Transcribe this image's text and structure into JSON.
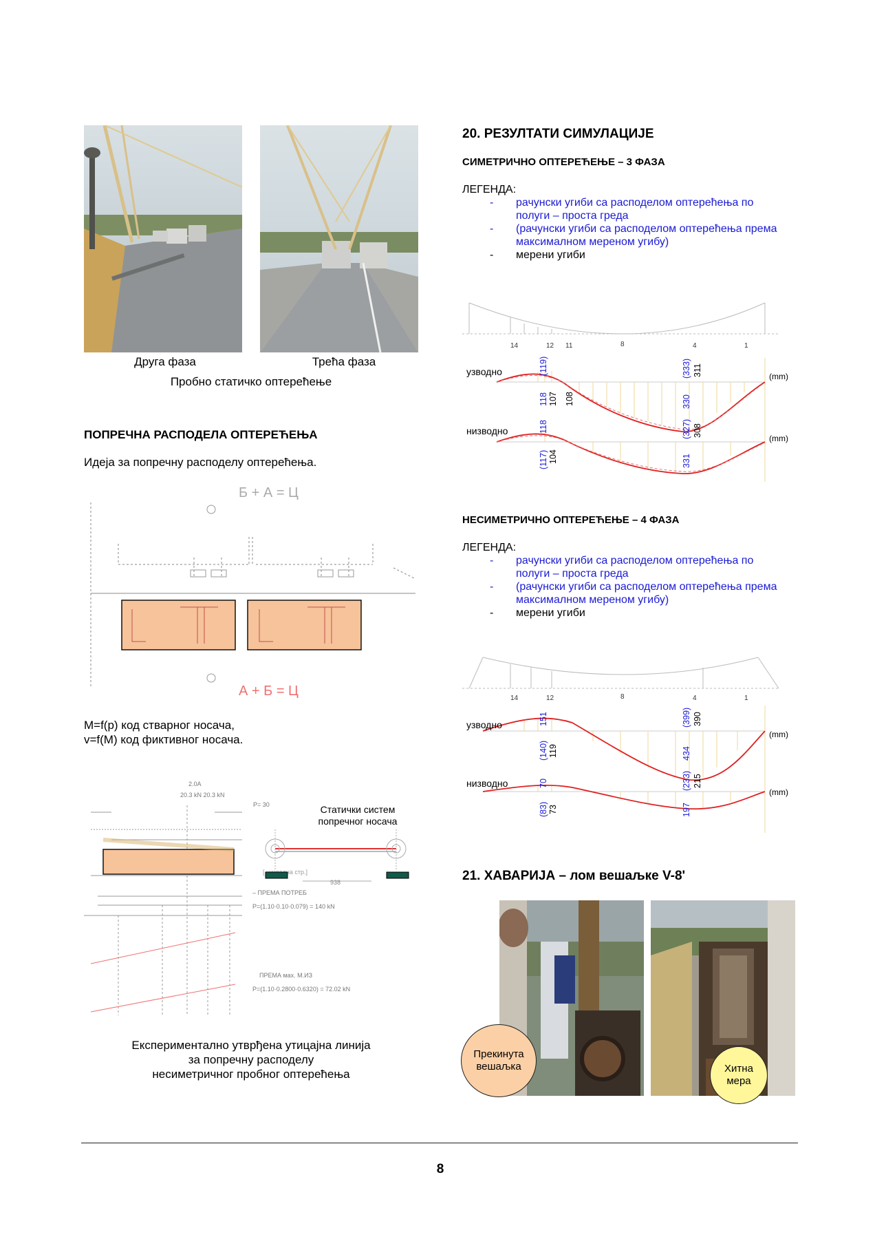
{
  "left": {
    "photo_captions": [
      "Друга фаза",
      "Трећа фаза"
    ],
    "photo_subtitle": "Пробно статичко оптерећење",
    "section_title": "ПОПРЕЧНА РАСПОДЕЛА ОПТЕРЕЋЕЊА",
    "section_intro": "Идеја за попречну расподелу оптерећења.",
    "diagram_top_eq": "Б + А = Ц",
    "diagram_bottom_eq": "А + Б = Ц",
    "mf_line1": "M=f(p) код стварног носача,",
    "mf_line2": "v=f(M) код фиктивног носача.",
    "static_label_1": "Статички систем",
    "static_label_2": "попречног носача",
    "bottom_caption": [
      "Експериментално утврђена утицајна линија",
      "за попречну расподелу",
      "несиметричног пробног оптерећења"
    ]
  },
  "right": {
    "s20_title": "20.  РЕЗУЛТАТИ СИМУЛАЦИЈЕ",
    "sym_title": "СИМЕТРИЧНО ОПТЕРЕЋЕЊЕ – 3 ФАЗА",
    "asym_title": "НЕСИМЕТРИЧНО ОПТЕРЕЋЕЊЕ – 4 ФАЗА",
    "legend_label": "ЛЕГЕНДА:",
    "legend_dash": "-",
    "legend_items": [
      {
        "line1": "рачунски угиби са расподелом оптерећења по",
        "line2": "полуги – проста греда",
        "color": "#1a1ad4"
      },
      {
        "line1": "(рачунски угиби са расподелом оптерећења према",
        "line2": "максималном мереном угибу)",
        "color": "#1a1ad4"
      },
      {
        "line1": "мерени угиби",
        "line2": "",
        "color": "#000000"
      }
    ],
    "upstream": "узводно",
    "downstream": "низводно",
    "unit": "(mm)",
    "sym_nodes": [
      "14",
      "12",
      "11",
      "8",
      "4",
      "1"
    ],
    "asym_nodes": [
      "14",
      "12",
      "8",
      "4",
      "1"
    ],
    "sym_up_values": [
      "(119)",
      "118",
      "107",
      "108",
      "(333)",
      "311",
      "330"
    ],
    "sym_down_values": [
      "118",
      "(117)",
      "104",
      "(327)",
      "308",
      "331"
    ],
    "asym_up_values": [
      "151",
      "(140)",
      "119",
      "(399)",
      "390",
      "434"
    ],
    "asym_down_values": [
      "70",
      "(83)",
      "73",
      "(233)",
      "215",
      "197"
    ],
    "s21_title": "21.  ХАВАРИЈА – лом вешаљке V-8'",
    "bubble1": [
      "Прекинута",
      "вешаљка"
    ],
    "bubble2": [
      "Хитна",
      "мера"
    ]
  },
  "footer": {
    "page_number": "8"
  }
}
